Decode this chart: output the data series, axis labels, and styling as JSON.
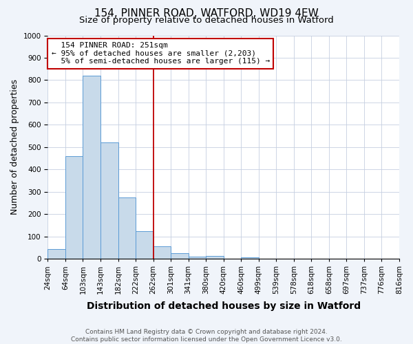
{
  "title": "154, PINNER ROAD, WATFORD, WD19 4EW",
  "subtitle": "Size of property relative to detached houses in Watford",
  "xlabel": "Distribution of detached houses by size in Watford",
  "ylabel": "Number of detached properties",
  "bar_values": [
    45,
    460,
    820,
    520,
    275,
    125,
    55,
    25,
    10,
    12,
    0,
    8,
    0,
    0,
    0,
    0,
    0,
    0,
    0,
    0
  ],
  "x_labels": [
    "24sqm",
    "64sqm",
    "103sqm",
    "143sqm",
    "182sqm",
    "222sqm",
    "262sqm",
    "301sqm",
    "341sqm",
    "380sqm",
    "420sqm",
    "460sqm",
    "499sqm",
    "539sqm",
    "578sqm",
    "618sqm",
    "658sqm",
    "697sqm",
    "737sqm",
    "776sqm",
    "816sqm"
  ],
  "bar_color": "#c8daea",
  "bar_edge_color": "#5b9bd5",
  "vline_x_index": 6,
  "vline_color": "#c00000",
  "annotation_text": "  154 PINNER ROAD: 251sqm\n← 95% of detached houses are smaller (2,203)\n  5% of semi-detached houses are larger (115) →",
  "annotation_box_color": "#c00000",
  "annotation_box_facecolor": "white",
  "ylim": [
    0,
    1000
  ],
  "yticks": [
    0,
    100,
    200,
    300,
    400,
    500,
    600,
    700,
    800,
    900,
    1000
  ],
  "footnote": "Contains HM Land Registry data © Crown copyright and database right 2024.\nContains public sector information licensed under the Open Government Licence v3.0.",
  "bg_color": "#f0f4fa",
  "plot_bg_color": "white",
  "title_fontsize": 11,
  "subtitle_fontsize": 9.5,
  "xlabel_fontsize": 10,
  "ylabel_fontsize": 9,
  "tick_fontsize": 7.5,
  "annotation_fontsize": 8,
  "footnote_fontsize": 6.5
}
